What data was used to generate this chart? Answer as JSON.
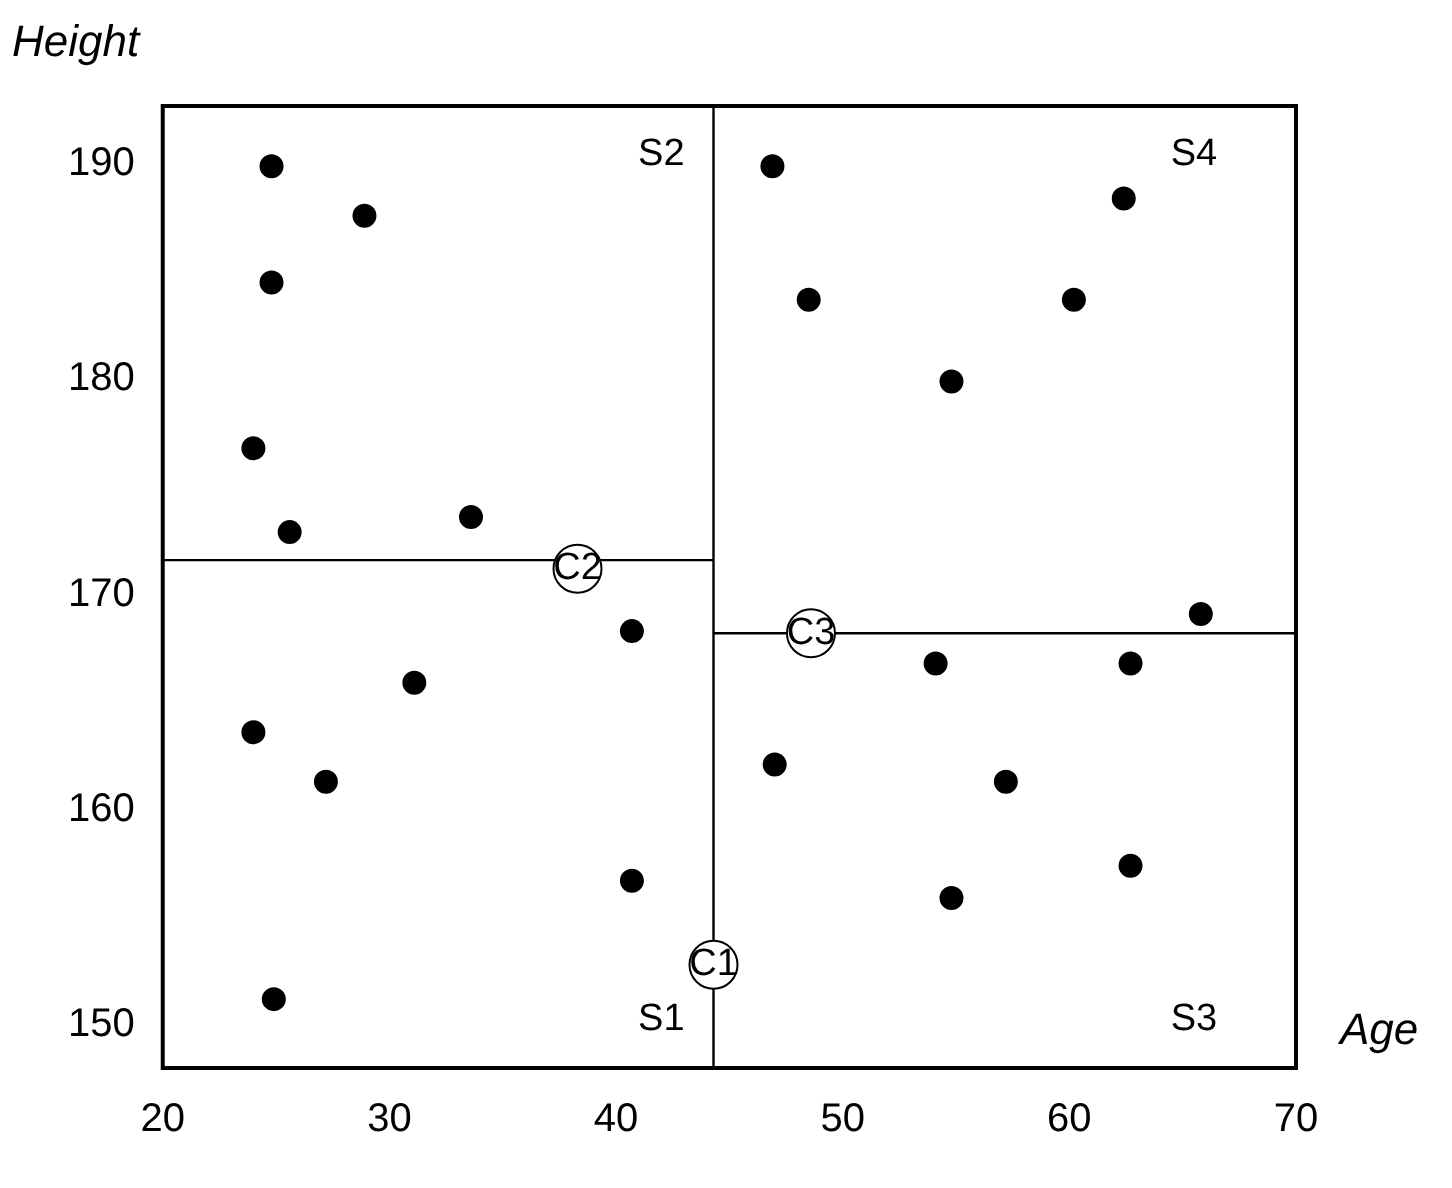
{
  "chart_data": {
    "type": "scatter",
    "xlabel": "Age",
    "ylabel": "Height",
    "xlim": [
      20,
      70
    ],
    "ylim": [
      148,
      192.7
    ],
    "xticks": [
      20,
      30,
      40,
      50,
      60,
      70
    ],
    "yticks": [
      150,
      160,
      170,
      180,
      190
    ],
    "grid": false,
    "legend": false,
    "series": [
      {
        "color": "#000000",
        "marker": "circle",
        "x": [
          24.8,
          28.9,
          24.8,
          24.0,
          25.6,
          33.6,
          40.7,
          31.1,
          24.0,
          27.2,
          40.7,
          24.9,
          46.9,
          62.4,
          48.5,
          60.2,
          54.8,
          65.8,
          54.1,
          62.7,
          47.0,
          57.2,
          62.7,
          54.8
        ],
        "values": [
          189.9,
          187.6,
          184.5,
          176.8,
          172.9,
          173.6,
          168.3,
          165.9,
          163.6,
          161.3,
          156.7,
          151.2,
          189.9,
          188.4,
          183.7,
          183.7,
          179.9,
          169.1,
          166.8,
          166.8,
          162.1,
          161.3,
          157.4,
          155.9
        ]
      },
      {
        "type": "line",
        "color": "#000000",
        "marker": "none",
        "x": [
          44.3,
          44.3
        ],
        "values": [
          148,
          192.7
        ]
      },
      {
        "type": "line",
        "color": "#000000",
        "marker": "none",
        "x": [
          20,
          44.3
        ],
        "values": [
          171.6,
          171.6
        ]
      },
      {
        "type": "line",
        "color": "#000000",
        "marker": "none",
        "x": [
          44.3,
          70
        ],
        "values": [
          168.2,
          168.2
        ]
      },
      {
        "color": "#ffffff",
        "marker": "circle",
        "x": [
          44.3,
          38.3,
          48.6
        ],
        "values": [
          152.8,
          171.2,
          168.2
        ]
      }
    ],
    "annotations": [
      {
        "text": "C1",
        "x": 44.3,
        "y": 152.8
      },
      {
        "text": "C2",
        "x": 38.3,
        "y": 171.2
      },
      {
        "text": "C3",
        "x": 48.6,
        "y": 168.2
      },
      "S1",
      "S2",
      "S3",
      "S4"
    ]
  }
}
